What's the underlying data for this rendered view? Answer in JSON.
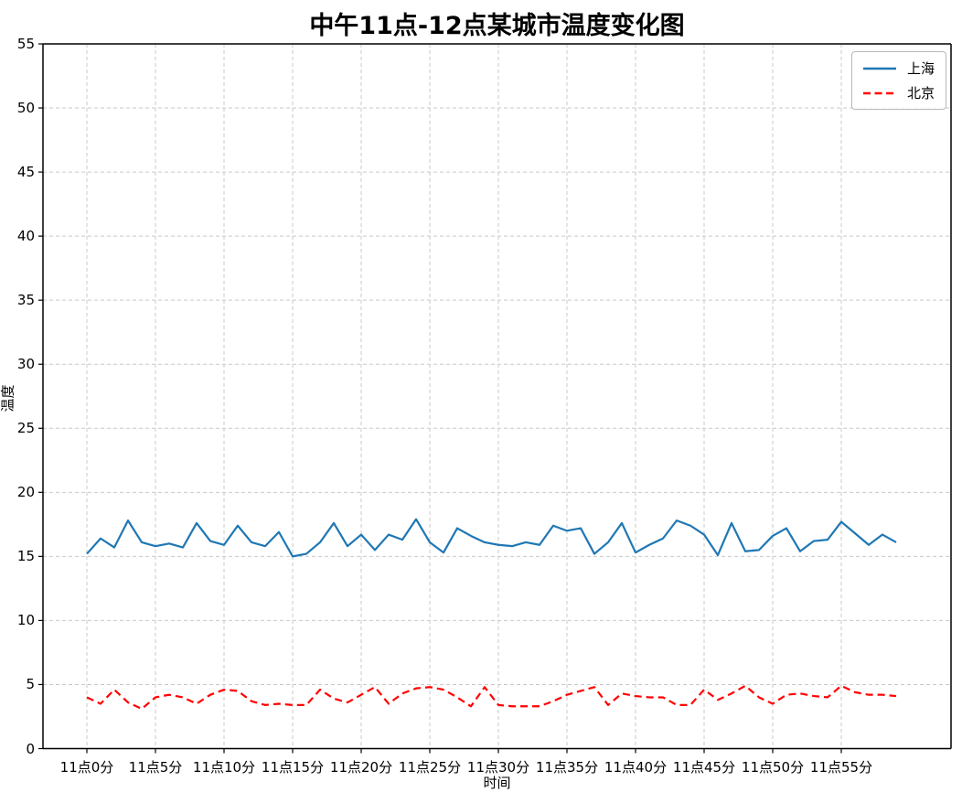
{
  "chart_data": {
    "type": "line",
    "title": "中午11点-12点某城市温度变化图",
    "xlabel": "时间",
    "ylabel": "温度",
    "x_unit_minutes": 60,
    "x_tick_labels": [
      "11点0分",
      "11点5分",
      "11点10分",
      "11点15分",
      "11点20分",
      "11点25分",
      "11点30分",
      "11点35分",
      "11点40分",
      "11点45分",
      "11点50分",
      "11点55分"
    ],
    "x_tick_positions": [
      0,
      5,
      10,
      15,
      20,
      25,
      30,
      35,
      40,
      45,
      50,
      55
    ],
    "y_ticks": [
      0,
      5,
      10,
      15,
      20,
      25,
      30,
      35,
      40,
      45,
      50,
      55
    ],
    "ylim": [
      0,
      55
    ],
    "grid": true,
    "grid_style": "dashed",
    "grid_color": "#c9c9c9",
    "legend_position": "upper right",
    "series": [
      {
        "name": "上海",
        "color": "#1f77b4",
        "style": "solid",
        "values": [
          15.2,
          16.4,
          15.7,
          17.8,
          16.1,
          15.8,
          16.0,
          15.7,
          17.6,
          16.2,
          15.9,
          17.4,
          16.1,
          15.8,
          16.9,
          15.0,
          15.2,
          16.1,
          17.6,
          15.8,
          16.7,
          15.5,
          16.7,
          16.3,
          17.9,
          16.1,
          15.3,
          17.2,
          16.6,
          16.1,
          15.9,
          15.8,
          16.1,
          15.9,
          17.4,
          17.0,
          17.2,
          15.2,
          16.1,
          17.6,
          15.3,
          15.9,
          16.4,
          17.8,
          17.4,
          16.7,
          15.1,
          17.6,
          15.4,
          15.5,
          16.6,
          17.2,
          15.4,
          16.2,
          16.3,
          17.7,
          16.8,
          15.9,
          16.7,
          16.1
        ]
      },
      {
        "name": "北京",
        "color": "#ff0000",
        "style": "dashed",
        "values": [
          4.0,
          3.5,
          4.6,
          3.6,
          3.1,
          4.0,
          4.2,
          4.0,
          3.5,
          4.2,
          4.6,
          4.5,
          3.7,
          3.4,
          3.5,
          3.4,
          3.4,
          4.6,
          3.9,
          3.6,
          4.2,
          4.8,
          3.5,
          4.3,
          4.7,
          4.8,
          4.6,
          4.0,
          3.3,
          4.8,
          3.4,
          3.3,
          3.3,
          3.3,
          3.7,
          4.2,
          4.5,
          4.8,
          3.4,
          4.3,
          4.1,
          4.0,
          4.0,
          3.4,
          3.4,
          4.6,
          3.8,
          4.3,
          4.9,
          4.0,
          3.5,
          4.2,
          4.3,
          4.1,
          4.0,
          4.9,
          4.4,
          4.2,
          4.2,
          4.1
        ]
      }
    ]
  }
}
